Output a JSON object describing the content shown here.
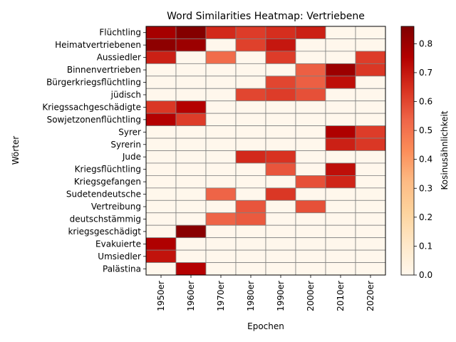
{
  "chart_data": {
    "type": "heatmap",
    "title": "Word Similarities Heatmap: Vertriebene",
    "xlabel": "Epochen",
    "ylabel": "Wörter",
    "colorbar_label": "Kosinusähnlichkeit",
    "colormap": "OrRd",
    "vmin": 0.0,
    "vmax": 0.86,
    "colorbar_ticks": [
      "0.0",
      "0.1",
      "0.2",
      "0.3",
      "0.4",
      "0.5",
      "0.6",
      "0.7",
      "0.8"
    ],
    "x": [
      "1950er",
      "1960er",
      "1970er",
      "1980er",
      "1990er",
      "2000er",
      "2010er",
      "2020er"
    ],
    "y": [
      "Flüchtling",
      "Heimatvertriebenen",
      "Aussiedler",
      "Binnenvertrieben",
      "Bürgerkriegsflüchtling",
      "jüdisch",
      "Kriegssachgeschädigte",
      "Sowjetzonenflüchtling",
      "Syrer",
      "Syrerin",
      "Jude",
      "Kriegsflüchtling",
      "Kriegsgefangen",
      "Sudetendeutsche",
      "Vertreibung",
      "deutschstämmig",
      "kriegsgeschädigt",
      "Evakuierte",
      "Umsiedler",
      "Palästina"
    ],
    "values": [
      [
        0.78,
        0.85,
        0.66,
        0.62,
        0.65,
        0.68,
        0.0,
        0.0
      ],
      [
        0.83,
        0.8,
        0.0,
        0.61,
        0.7,
        0.0,
        0.0,
        0.0
      ],
      [
        0.68,
        0.0,
        0.52,
        0.0,
        0.62,
        0.0,
        0.0,
        0.62
      ],
      [
        0.0,
        0.0,
        0.0,
        0.0,
        0.0,
        0.55,
        0.8,
        0.63
      ],
      [
        0.0,
        0.0,
        0.0,
        0.0,
        0.6,
        0.55,
        0.72,
        0.0
      ],
      [
        0.0,
        0.0,
        0.0,
        0.6,
        0.62,
        0.58,
        0.0,
        0.0
      ],
      [
        0.63,
        0.75,
        0.0,
        0.0,
        0.0,
        0.0,
        0.0,
        0.0
      ],
      [
        0.75,
        0.62,
        0.0,
        0.0,
        0.0,
        0.0,
        0.0,
        0.0
      ],
      [
        0.0,
        0.0,
        0.0,
        0.0,
        0.0,
        0.0,
        0.76,
        0.62
      ],
      [
        0.0,
        0.0,
        0.0,
        0.0,
        0.0,
        0.0,
        0.68,
        0.63
      ],
      [
        0.0,
        0.0,
        0.0,
        0.66,
        0.64,
        0.0,
        0.0,
        0.0
      ],
      [
        0.0,
        0.0,
        0.0,
        0.0,
        0.57,
        0.0,
        0.72,
        0.0
      ],
      [
        0.0,
        0.0,
        0.0,
        0.0,
        0.0,
        0.58,
        0.67,
        0.0
      ],
      [
        0.0,
        0.0,
        0.54,
        0.0,
        0.63,
        0.0,
        0.0,
        0.0
      ],
      [
        0.0,
        0.0,
        0.0,
        0.57,
        0.0,
        0.58,
        0.0,
        0.0
      ],
      [
        0.0,
        0.0,
        0.54,
        0.56,
        0.0,
        0.0,
        0.0,
        0.0
      ],
      [
        0.0,
        0.84,
        0.0,
        0.0,
        0.0,
        0.0,
        0.0,
        0.0
      ],
      [
        0.76,
        0.0,
        0.0,
        0.0,
        0.0,
        0.0,
        0.0,
        0.0
      ],
      [
        0.71,
        0.0,
        0.0,
        0.0,
        0.0,
        0.0,
        0.0,
        0.0
      ],
      [
        0.0,
        0.75,
        0.0,
        0.0,
        0.0,
        0.0,
        0.0,
        0.0
      ]
    ],
    "grid": true
  }
}
